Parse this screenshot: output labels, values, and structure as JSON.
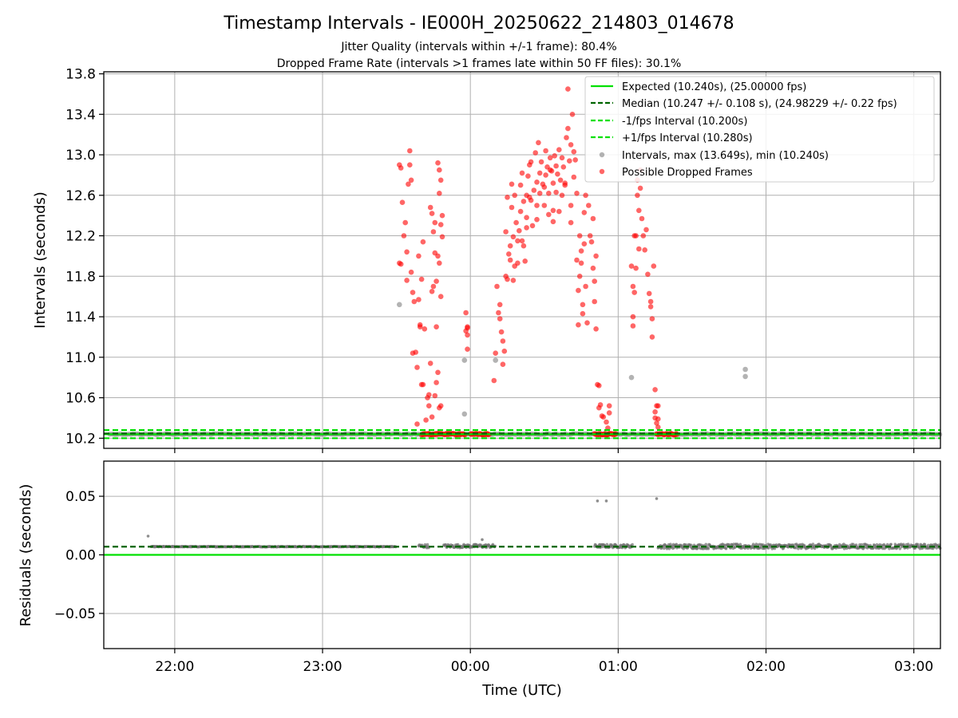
{
  "title": "Timestamp Intervals - IE000H_20250622_214803_014678",
  "subtitle_line1": "Jitter Quality (intervals within +/-1 frame): 80.4%",
  "subtitle_line2": "Dropped Frame Rate (intervals >1 frames late within 50 FF files): 30.1%",
  "colors": {
    "expected": "#00e000",
    "median": "#006400",
    "fps_band": "#00e000",
    "intervals": "#808080",
    "dropped": "#ff0000",
    "grid": "#b0b0b0",
    "residual_points": "#707070"
  },
  "chart_data": [
    {
      "type": "scatter",
      "panel": "top",
      "ylabel": "Intervals (seconds)",
      "xlabel": "",
      "x_unit": "hours UTC (elapsed from 00:00 of 2025-06-22; values above 24 are after midnight)",
      "xlim": [
        21.52,
        27.18
      ],
      "ylim": [
        10.1,
        13.82
      ],
      "yticks": [
        "10.2",
        "10.6",
        "11.0",
        "11.4",
        "11.8",
        "12.2",
        "12.6",
        "13.0",
        "13.4",
        "13.8"
      ],
      "grid": true,
      "legend_position": "top-right",
      "legend": [
        "Expected (10.240s), (25.00000 fps)",
        "Median (10.247 +/- 0.108 s), (24.98229 +/- 0.22 fps)",
        "-1/fps Interval (10.200s)",
        "+1/fps Interval (10.280s)",
        "Intervals, max (13.649s), min (10.240s)",
        "Possible Dropped Frames"
      ],
      "lines": [
        {
          "name": "Expected (10.240s), (25.00000 fps)",
          "y": 10.24,
          "style": "solid"
        },
        {
          "name": "Median (10.247 +/- 0.108 s), (24.98229 +/- 0.22 fps)",
          "y": 10.247,
          "style": "dashed"
        },
        {
          "name": "-1/fps Interval (10.200s)",
          "y": 10.2,
          "style": "dashed"
        },
        {
          "name": "+1/fps Interval (10.280s)",
          "y": 10.28,
          "style": "dashed"
        }
      ],
      "baseline_interval_band": {
        "y": 10.24,
        "x_range": [
          21.56,
          27.18
        ]
      },
      "series_grey": [
        [
          23.52,
          11.52
        ],
        [
          23.96,
          10.97
        ],
        [
          23.96,
          10.44
        ],
        [
          24.17,
          10.97
        ],
        [
          25.09,
          10.8
        ],
        [
          25.86,
          10.88
        ],
        [
          25.86,
          10.81
        ]
      ],
      "series_red": [
        [
          23.52,
          12.9
        ],
        [
          23.53,
          12.87
        ],
        [
          23.54,
          12.53
        ],
        [
          23.52,
          11.93
        ],
        [
          23.53,
          11.92
        ],
        [
          23.55,
          12.2
        ],
        [
          23.56,
          12.33
        ],
        [
          23.57,
          12.04
        ],
        [
          23.57,
          11.76
        ],
        [
          23.58,
          12.71
        ],
        [
          23.59,
          12.9
        ],
        [
          23.59,
          13.04
        ],
        [
          23.6,
          12.75
        ],
        [
          23.6,
          11.84
        ],
        [
          23.61,
          11.64
        ],
        [
          23.62,
          11.55
        ],
        [
          23.61,
          11.04
        ],
        [
          23.63,
          11.05
        ],
        [
          23.64,
          10.9
        ],
        [
          23.65,
          12.0
        ],
        [
          23.65,
          11.57
        ],
        [
          23.66,
          11.32
        ],
        [
          23.67,
          10.73
        ],
        [
          23.68,
          10.73
        ],
        [
          23.67,
          11.77
        ],
        [
          23.66,
          11.3
        ],
        [
          23.68,
          12.14
        ],
        [
          23.69,
          11.28
        ],
        [
          23.7,
          10.38
        ],
        [
          23.64,
          10.34
        ],
        [
          23.71,
          10.6
        ],
        [
          23.73,
          12.48
        ],
        [
          23.74,
          12.42
        ],
        [
          23.74,
          11.65
        ],
        [
          23.75,
          11.7
        ],
        [
          23.75,
          12.24
        ],
        [
          23.76,
          12.33
        ],
        [
          23.76,
          12.03
        ],
        [
          23.77,
          11.75
        ],
        [
          23.78,
          12.0
        ],
        [
          23.78,
          12.92
        ],
        [
          23.79,
          12.62
        ],
        [
          23.79,
          12.85
        ],
        [
          23.8,
          12.31
        ],
        [
          23.8,
          11.6
        ],
        [
          23.81,
          12.19
        ],
        [
          23.79,
          11.93
        ],
        [
          23.77,
          11.3
        ],
        [
          23.74,
          10.41
        ],
        [
          23.76,
          10.62
        ],
        [
          23.77,
          10.75
        ],
        [
          23.79,
          10.5
        ],
        [
          23.78,
          10.85
        ],
        [
          23.72,
          10.63
        ],
        [
          23.72,
          10.52
        ],
        [
          23.73,
          10.94
        ],
        [
          23.8,
          10.52
        ],
        [
          23.81,
          12.4
        ],
        [
          23.8,
          12.75
        ],
        [
          23.97,
          11.44
        ],
        [
          23.97,
          11.26
        ],
        [
          23.98,
          11.29
        ],
        [
          23.98,
          11.3
        ],
        [
          23.98,
          11.22
        ],
        [
          23.98,
          11.08
        ],
        [
          24.17,
          11.04
        ],
        [
          24.16,
          10.77
        ],
        [
          24.18,
          11.7
        ],
        [
          24.19,
          11.44
        ],
        [
          24.2,
          11.38
        ],
        [
          24.21,
          11.25
        ],
        [
          24.22,
          11.16
        ],
        [
          24.23,
          11.06
        ],
        [
          24.24,
          11.8
        ],
        [
          24.24,
          12.24
        ],
        [
          24.25,
          11.77
        ],
        [
          24.25,
          12.58
        ],
        [
          24.26,
          12.02
        ],
        [
          24.27,
          11.96
        ],
        [
          24.28,
          12.71
        ],
        [
          24.28,
          12.48
        ],
        [
          24.29,
          12.19
        ],
        [
          24.3,
          11.9
        ],
        [
          24.3,
          12.6
        ],
        [
          24.31,
          12.33
        ],
        [
          24.32,
          12.15
        ],
        [
          24.33,
          12.25
        ],
        [
          24.34,
          12.44
        ],
        [
          24.34,
          12.7
        ],
        [
          24.35,
          12.82
        ],
        [
          24.36,
          12.54
        ],
        [
          24.36,
          12.1
        ],
        [
          24.37,
          11.95
        ],
        [
          24.38,
          12.6
        ],
        [
          24.38,
          12.38
        ],
        [
          24.39,
          12.79
        ],
        [
          24.4,
          12.9
        ],
        [
          24.41,
          12.93
        ],
        [
          24.41,
          12.55
        ],
        [
          24.42,
          12.3
        ],
        [
          24.43,
          12.65
        ],
        [
          24.44,
          13.02
        ],
        [
          24.45,
          12.5
        ],
        [
          24.45,
          12.73
        ],
        [
          24.46,
          13.12
        ],
        [
          24.47,
          12.82
        ],
        [
          24.47,
          12.62
        ],
        [
          24.48,
          12.93
        ],
        [
          24.49,
          12.71
        ],
        [
          24.5,
          12.5
        ],
        [
          24.51,
          12.8
        ],
        [
          24.51,
          13.04
        ],
        [
          24.52,
          12.88
        ],
        [
          24.53,
          12.62
        ],
        [
          24.53,
          12.41
        ],
        [
          24.54,
          12.97
        ],
        [
          24.55,
          12.84
        ],
        [
          24.56,
          12.72
        ],
        [
          24.56,
          12.45
        ],
        [
          24.57,
          12.99
        ],
        [
          24.58,
          12.89
        ],
        [
          24.58,
          12.63
        ],
        [
          24.59,
          12.81
        ],
        [
          24.6,
          13.05
        ],
        [
          24.61,
          12.75
        ],
        [
          24.62,
          12.6
        ],
        [
          24.62,
          12.97
        ],
        [
          24.63,
          12.88
        ],
        [
          24.64,
          12.7
        ],
        [
          24.65,
          13.17
        ],
        [
          24.66,
          13.26
        ],
        [
          24.66,
          13.65
        ],
        [
          24.67,
          12.94
        ],
        [
          24.68,
          13.1
        ],
        [
          24.68,
          12.5
        ],
        [
          24.69,
          13.4
        ],
        [
          24.7,
          13.03
        ],
        [
          24.7,
          12.78
        ],
        [
          24.71,
          12.95
        ],
        [
          24.72,
          12.62
        ],
        [
          24.6,
          12.44
        ],
        [
          24.56,
          12.34
        ],
        [
          24.45,
          12.36
        ],
        [
          24.38,
          12.28
        ],
        [
          24.32,
          11.93
        ],
        [
          24.22,
          10.93
        ],
        [
          24.2,
          11.52
        ],
        [
          24.27,
          12.1
        ],
        [
          24.29,
          11.76
        ],
        [
          24.35,
          12.15
        ],
        [
          24.4,
          12.58
        ],
        [
          24.5,
          12.68
        ],
        [
          24.54,
          12.85
        ],
        [
          24.64,
          12.72
        ],
        [
          24.68,
          12.33
        ],
        [
          24.72,
          11.96
        ],
        [
          24.73,
          11.66
        ],
        [
          24.73,
          11.32
        ],
        [
          24.74,
          12.2
        ],
        [
          24.74,
          11.8
        ],
        [
          24.75,
          12.05
        ],
        [
          24.75,
          11.93
        ],
        [
          24.76,
          11.52
        ],
        [
          24.76,
          11.43
        ],
        [
          24.77,
          12.43
        ],
        [
          24.77,
          12.12
        ],
        [
          24.78,
          12.6
        ],
        [
          24.78,
          11.7
        ],
        [
          24.79,
          11.34
        ],
        [
          24.8,
          12.5
        ],
        [
          24.81,
          12.2
        ],
        [
          24.82,
          12.14
        ],
        [
          24.83,
          11.88
        ],
        [
          24.83,
          12.37
        ],
        [
          24.84,
          11.55
        ],
        [
          24.84,
          11.75
        ],
        [
          24.85,
          12.0
        ],
        [
          24.85,
          11.28
        ],
        [
          24.86,
          10.73
        ],
        [
          24.87,
          10.72
        ],
        [
          24.87,
          10.5
        ],
        [
          24.88,
          10.53
        ],
        [
          24.89,
          10.42
        ],
        [
          24.9,
          10.41
        ],
        [
          24.92,
          10.36
        ],
        [
          24.93,
          10.3
        ],
        [
          24.94,
          10.52
        ],
        [
          24.94,
          10.45
        ],
        [
          25.09,
          11.9
        ],
        [
          25.1,
          11.7
        ],
        [
          25.1,
          11.4
        ],
        [
          25.1,
          11.31
        ],
        [
          25.11,
          11.64
        ],
        [
          25.11,
          12.2
        ],
        [
          25.12,
          12.2
        ],
        [
          25.12,
          11.88
        ],
        [
          25.13,
          12.6
        ],
        [
          25.13,
          12.75
        ],
        [
          25.14,
          12.45
        ],
        [
          25.14,
          12.07
        ],
        [
          25.15,
          12.85
        ],
        [
          25.15,
          12.67
        ],
        [
          25.16,
          12.37
        ],
        [
          25.17,
          12.2
        ],
        [
          25.18,
          12.06
        ],
        [
          25.19,
          12.26
        ],
        [
          25.2,
          11.82
        ],
        [
          25.21,
          11.63
        ],
        [
          25.22,
          11.55
        ],
        [
          25.22,
          11.5
        ],
        [
          25.23,
          11.38
        ],
        [
          25.23,
          11.2
        ],
        [
          25.24,
          11.9
        ],
        [
          25.25,
          10.68
        ],
        [
          25.26,
          10.52
        ],
        [
          25.27,
          10.52
        ],
        [
          25.25,
          10.46
        ],
        [
          25.25,
          10.4
        ],
        [
          25.26,
          10.35
        ],
        [
          25.27,
          10.31
        ],
        [
          25.27,
          10.39
        ]
      ],
      "dropped_baseline_clusters": [
        [
          23.67,
          23.97
        ],
        [
          24.0,
          24.13
        ],
        [
          24.84,
          24.99
        ],
        [
          25.26,
          25.4
        ]
      ]
    },
    {
      "type": "scatter",
      "panel": "bottom",
      "ylabel": "Residuals (seconds)",
      "xlabel": "Time (UTC)",
      "x_unit": "hours UTC (elapsed from 00:00 of 2025-06-22; values above 24 are after midnight)",
      "xlim": [
        21.52,
        27.18
      ],
      "ylim": [
        -0.08,
        0.08
      ],
      "yticks": [
        "−0.05",
        "0.00",
        "0.05"
      ],
      "xticks": [
        "22:00",
        "23:00",
        "00:00",
        "01:00",
        "02:00",
        "03:00"
      ],
      "grid": true,
      "lines": [
        {
          "name": "Expected",
          "y": 0.0,
          "style": "solid"
        },
        {
          "name": "Median",
          "y": 0.007,
          "style": "dashed"
        }
      ],
      "points": [
        [
          21.82,
          0.016
        ],
        [
          24.86,
          0.046
        ],
        [
          24.92,
          0.046
        ],
        [
          25.26,
          0.048
        ],
        [
          24.08,
          0.013
        ]
      ],
      "residual_bands": [
        {
          "x_range": [
            21.84,
            23.5
          ],
          "y": 0.007,
          "spread": 0.0006
        },
        {
          "x_range": [
            23.65,
            23.72
          ],
          "y": 0.0075,
          "spread": 0.003
        },
        {
          "x_range": [
            23.82,
            24.17
          ],
          "y": 0.0075,
          "spread": 0.003
        },
        {
          "x_range": [
            24.84,
            25.1
          ],
          "y": 0.0075,
          "spread": 0.003
        },
        {
          "x_range": [
            25.27,
            27.18
          ],
          "y": 0.0072,
          "spread": 0.004
        }
      ]
    }
  ]
}
